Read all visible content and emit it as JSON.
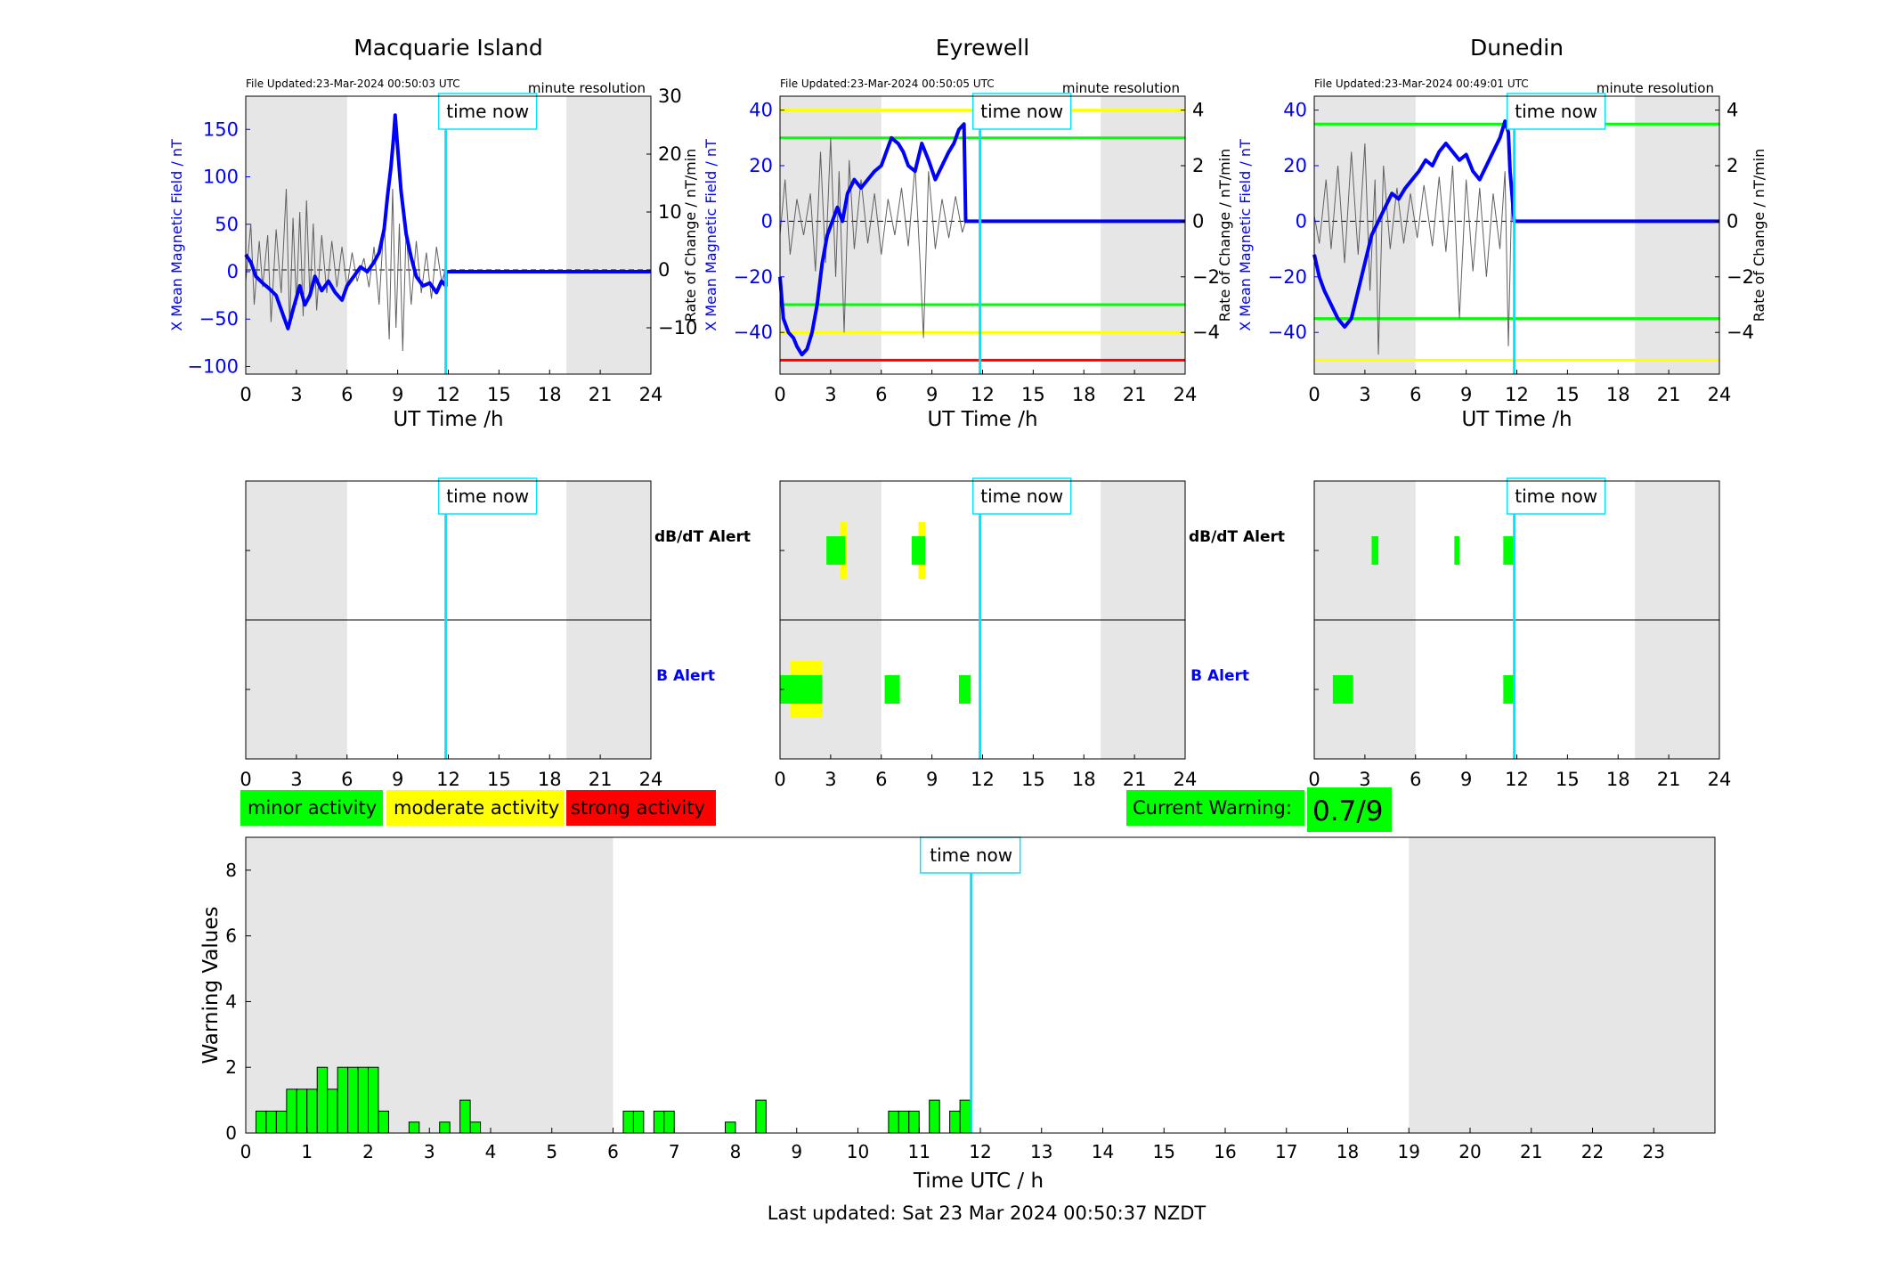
{
  "colors": {
    "x_series": "#0000ff",
    "roc_series": "#606060",
    "time_now": "#00e5ff",
    "night_shade": "#e6e6e6",
    "minor": "#00ff00",
    "moderate": "#ffff00",
    "strong": "#ff0000",
    "b_alert_label": "#0000ff"
  },
  "common": {
    "time_now_label": "time now",
    "time_now_hour": 11.85,
    "resolution_label": "minute resolution",
    "x_axis_label": "UT Time /h",
    "y_left_label": "X Mean Magnetic Field / nT",
    "y_right_label": "Rate of Change / nT/min",
    "hour_ticks": [
      0,
      3,
      6,
      9,
      12,
      15,
      18,
      21,
      24
    ]
  },
  "alerts": {
    "dbdt_label": "dB/dT Alert",
    "b_label": "B Alert"
  },
  "legend": {
    "minor": "minor activity",
    "moderate": "moderate activity",
    "strong": "strong activity"
  },
  "current_warning": {
    "label": "Current Warning:",
    "value": "0.7/9"
  },
  "footer": {
    "last_updated": "Last updated: Sat 23 Mar 2024 00:50:37 NZDT"
  },
  "chart_data": [
    {
      "type": "line",
      "station": "Macquarie Island",
      "file_updated": "File Updated:23-Mar-2024 00:50:03 UTC",
      "xlim": [
        0,
        24
      ],
      "ylim": [
        -108,
        185
      ],
      "y_ticks": [
        -100,
        -50,
        0,
        50,
        100,
        150
      ],
      "y2lim": [
        -18,
        30
      ],
      "y2_ticks": [
        -10,
        0,
        10,
        20,
        30
      ],
      "shade": [
        [
          0,
          6
        ],
        [
          19,
          24
        ]
      ],
      "thresholds": [],
      "x_points": [
        [
          0,
          18
        ],
        [
          0.3,
          10
        ],
        [
          0.6,
          -5
        ],
        [
          1,
          -12
        ],
        [
          1.4,
          -18
        ],
        [
          1.8,
          -25
        ],
        [
          2.2,
          -45
        ],
        [
          2.5,
          -60
        ],
        [
          2.8,
          -40
        ],
        [
          3.2,
          -15
        ],
        [
          3.5,
          -35
        ],
        [
          3.8,
          -25
        ],
        [
          4.1,
          -5
        ],
        [
          4.5,
          -20
        ],
        [
          4.9,
          -10
        ],
        [
          5.3,
          -22
        ],
        [
          5.7,
          -30
        ],
        [
          6.0,
          -15
        ],
        [
          6.4,
          -5
        ],
        [
          6.8,
          5
        ],
        [
          7.2,
          0
        ],
        [
          7.6,
          10
        ],
        [
          7.9,
          20
        ],
        [
          8.2,
          45
        ],
        [
          8.4,
          80
        ],
        [
          8.6,
          110
        ],
        [
          8.75,
          140
        ],
        [
          8.85,
          165
        ],
        [
          9.0,
          130
        ],
        [
          9.2,
          85
        ],
        [
          9.5,
          40
        ],
        [
          9.8,
          15
        ],
        [
          10.1,
          -5
        ],
        [
          10.5,
          -15
        ],
        [
          10.9,
          -12
        ],
        [
          11.3,
          -22
        ],
        [
          11.6,
          -10
        ],
        [
          11.85,
          -15
        ],
        [
          11.85,
          0
        ],
        [
          24,
          0
        ]
      ],
      "roc_points": [
        [
          0,
          -2
        ],
        [
          0.3,
          8
        ],
        [
          0.5,
          -6
        ],
        [
          0.8,
          5
        ],
        [
          1.0,
          -3
        ],
        [
          1.3,
          6
        ],
        [
          1.5,
          -9
        ],
        [
          1.8,
          7
        ],
        [
          2.1,
          -4
        ],
        [
          2.4,
          14
        ],
        [
          2.6,
          -10
        ],
        [
          2.8,
          9
        ],
        [
          3.0,
          -6
        ],
        [
          3.2,
          10
        ],
        [
          3.4,
          -8
        ],
        [
          3.6,
          12
        ],
        [
          3.8,
          -5
        ],
        [
          4.0,
          8
        ],
        [
          4.2,
          -7
        ],
        [
          4.5,
          6
        ],
        [
          4.8,
          -4
        ],
        [
          5.1,
          5
        ],
        [
          5.4,
          -3
        ],
        [
          5.7,
          4
        ],
        [
          6.0,
          -3
        ],
        [
          6.3,
          3
        ],
        [
          6.6,
          -2
        ],
        [
          7.0,
          2
        ],
        [
          7.3,
          -3
        ],
        [
          7.6,
          4
        ],
        [
          7.9,
          -6
        ],
        [
          8.2,
          9
        ],
        [
          8.5,
          -12
        ],
        [
          8.7,
          14
        ],
        [
          8.9,
          -10
        ],
        [
          9.1,
          8
        ],
        [
          9.3,
          -14
        ],
        [
          9.5,
          7
        ],
        [
          9.8,
          -6
        ],
        [
          10.1,
          5
        ],
        [
          10.4,
          -4
        ],
        [
          10.7,
          3
        ],
        [
          11.0,
          -5
        ],
        [
          11.3,
          4
        ],
        [
          11.6,
          -2
        ],
        [
          11.85,
          0
        ]
      ]
    },
    {
      "type": "line",
      "station": "Eyrewell",
      "file_updated": "File Updated:23-Mar-2024 00:50:05 UTC",
      "xlim": [
        0,
        24
      ],
      "ylim": [
        -55,
        45
      ],
      "y_ticks": [
        -40,
        -20,
        0,
        20,
        40
      ],
      "y2lim": [
        -5.5,
        4.5
      ],
      "y2_ticks": [
        -4,
        -2,
        0,
        2,
        4
      ],
      "shade": [
        [
          0,
          6
        ],
        [
          19,
          24
        ]
      ],
      "thresholds": [
        [
          40,
          "moderate"
        ],
        [
          30,
          "minor"
        ],
        [
          -30,
          "minor"
        ],
        [
          -40,
          "moderate"
        ],
        [
          -50,
          "strong"
        ]
      ],
      "x_points": [
        [
          0,
          -20
        ],
        [
          0.2,
          -35
        ],
        [
          0.5,
          -40
        ],
        [
          0.8,
          -42
        ],
        [
          1.0,
          -45
        ],
        [
          1.3,
          -48
        ],
        [
          1.6,
          -46
        ],
        [
          1.9,
          -40
        ],
        [
          2.2,
          -30
        ],
        [
          2.5,
          -15
        ],
        [
          2.8,
          -5
        ],
        [
          3.1,
          0
        ],
        [
          3.4,
          5
        ],
        [
          3.7,
          0
        ],
        [
          4.0,
          10
        ],
        [
          4.4,
          15
        ],
        [
          4.8,
          12
        ],
        [
          5.2,
          15
        ],
        [
          5.6,
          18
        ],
        [
          6.0,
          20
        ],
        [
          6.3,
          25
        ],
        [
          6.6,
          30
        ],
        [
          7.0,
          28
        ],
        [
          7.3,
          25
        ],
        [
          7.6,
          20
        ],
        [
          8.0,
          18
        ],
        [
          8.4,
          28
        ],
        [
          8.8,
          22
        ],
        [
          9.2,
          15
        ],
        [
          9.6,
          20
        ],
        [
          10.0,
          25
        ],
        [
          10.3,
          28
        ],
        [
          10.6,
          33
        ],
        [
          10.9,
          35
        ],
        [
          11.0,
          0
        ],
        [
          24,
          0
        ]
      ],
      "roc_points": [
        [
          0,
          -0.5
        ],
        [
          0.3,
          1.5
        ],
        [
          0.6,
          -1.2
        ],
        [
          1.0,
          0.8
        ],
        [
          1.4,
          -0.5
        ],
        [
          1.8,
          1.0
        ],
        [
          2.1,
          -1.8
        ],
        [
          2.4,
          2.5
        ],
        [
          2.7,
          -1.5
        ],
        [
          3.0,
          3.0
        ],
        [
          3.3,
          -2.0
        ],
        [
          3.5,
          1.8
        ],
        [
          3.8,
          -4.0
        ],
        [
          4.1,
          2.2
        ],
        [
          4.4,
          -1.0
        ],
        [
          4.8,
          1.5
        ],
        [
          5.2,
          -0.8
        ],
        [
          5.6,
          1.0
        ],
        [
          6.0,
          -1.2
        ],
        [
          6.4,
          0.8
        ],
        [
          6.8,
          -0.5
        ],
        [
          7.2,
          1.2
        ],
        [
          7.6,
          -0.9
        ],
        [
          8.0,
          2.0
        ],
        [
          8.3,
          -1.5
        ],
        [
          8.5,
          -4.2
        ],
        [
          8.8,
          1.8
        ],
        [
          9.2,
          -1.0
        ],
        [
          9.6,
          0.8
        ],
        [
          10.0,
          -0.6
        ],
        [
          10.4,
          0.9
        ],
        [
          10.8,
          -0.4
        ],
        [
          11.0,
          0
        ]
      ]
    },
    {
      "type": "line",
      "station": "Dunedin",
      "file_updated": "File Updated:23-Mar-2024 00:49:01 UTC",
      "xlim": [
        0,
        24
      ],
      "ylim": [
        -55,
        45
      ],
      "y_ticks": [
        -40,
        -20,
        0,
        20,
        40
      ],
      "y2lim": [
        -5.5,
        4.5
      ],
      "y2_ticks": [
        -4,
        -2,
        0,
        2,
        4
      ],
      "shade": [
        [
          0,
          6
        ],
        [
          19,
          24
        ]
      ],
      "thresholds": [
        [
          35,
          "minor"
        ],
        [
          -35,
          "minor"
        ],
        [
          -50,
          "moderate"
        ]
      ],
      "x_points": [
        [
          0,
          -12
        ],
        [
          0.3,
          -20
        ],
        [
          0.6,
          -25
        ],
        [
          1.0,
          -30
        ],
        [
          1.4,
          -35
        ],
        [
          1.8,
          -38
        ],
        [
          2.2,
          -35
        ],
        [
          2.6,
          -25
        ],
        [
          3.0,
          -15
        ],
        [
          3.4,
          -5
        ],
        [
          3.8,
          0
        ],
        [
          4.2,
          5
        ],
        [
          4.6,
          10
        ],
        [
          5.0,
          8
        ],
        [
          5.4,
          12
        ],
        [
          5.8,
          15
        ],
        [
          6.2,
          18
        ],
        [
          6.6,
          22
        ],
        [
          7.0,
          20
        ],
        [
          7.4,
          25
        ],
        [
          7.8,
          28
        ],
        [
          8.2,
          25
        ],
        [
          8.6,
          22
        ],
        [
          9.0,
          24
        ],
        [
          9.4,
          18
        ],
        [
          9.8,
          15
        ],
        [
          10.2,
          20
        ],
        [
          10.6,
          25
        ],
        [
          11.0,
          30
        ],
        [
          11.3,
          36
        ],
        [
          11.5,
          32
        ],
        [
          11.6,
          18
        ],
        [
          11.85,
          0
        ],
        [
          24,
          0
        ]
      ],
      "roc_points": [
        [
          0,
          0.2
        ],
        [
          0.3,
          -0.8
        ],
        [
          0.7,
          1.5
        ],
        [
          1.0,
          -1.0
        ],
        [
          1.4,
          2.0
        ],
        [
          1.8,
          -1.5
        ],
        [
          2.2,
          2.5
        ],
        [
          2.6,
          -1.2
        ],
        [
          3.0,
          2.8
        ],
        [
          3.3,
          -2.5
        ],
        [
          3.6,
          1.5
        ],
        [
          3.8,
          -4.8
        ],
        [
          4.1,
          2.0
        ],
        [
          4.5,
          -1.0
        ],
        [
          4.9,
          1.2
        ],
        [
          5.3,
          -0.8
        ],
        [
          5.7,
          1.0
        ],
        [
          6.1,
          -0.6
        ],
        [
          6.5,
          1.3
        ],
        [
          7.0,
          -0.9
        ],
        [
          7.4,
          1.6
        ],
        [
          7.8,
          -1.1
        ],
        [
          8.2,
          2.0
        ],
        [
          8.6,
          -3.5
        ],
        [
          9.0,
          1.5
        ],
        [
          9.4,
          -1.8
        ],
        [
          9.8,
          1.2
        ],
        [
          10.2,
          -2.0
        ],
        [
          10.6,
          1.0
        ],
        [
          11.0,
          -1.0
        ],
        [
          11.3,
          1.8
        ],
        [
          11.5,
          -4.5
        ],
        [
          11.7,
          1.0
        ],
        [
          11.85,
          0
        ]
      ]
    },
    {
      "type": "heatmap",
      "station": "Macquarie Island",
      "xlim": [
        0,
        24
      ],
      "shade": [
        [
          0,
          6
        ],
        [
          19,
          24
        ]
      ],
      "dbdt": [],
      "b": []
    },
    {
      "type": "heatmap",
      "station": "Eyrewell",
      "xlim": [
        0,
        24
      ],
      "shade": [
        [
          0,
          6
        ],
        [
          19,
          24
        ]
      ],
      "dbdt": [
        [
          3.55,
          3.95,
          "moderate"
        ],
        [
          8.2,
          8.6,
          "moderate"
        ],
        [
          2.75,
          3.85,
          "minor"
        ],
        [
          7.8,
          8.6,
          "minor"
        ]
      ],
      "b": [
        [
          0.6,
          2.5,
          "moderate"
        ],
        [
          0,
          2.5,
          "minor"
        ],
        [
          6.2,
          7.1,
          "minor"
        ],
        [
          10.6,
          11.3,
          "minor"
        ]
      ]
    },
    {
      "type": "heatmap",
      "station": "Dunedin",
      "xlim": [
        0,
        24
      ],
      "shade": [
        [
          0,
          6
        ],
        [
          19,
          24
        ]
      ],
      "dbdt": [
        [
          3.4,
          3.8,
          "minor"
        ],
        [
          8.3,
          8.6,
          "minor"
        ],
        [
          11.2,
          11.9,
          "minor"
        ]
      ],
      "b": [
        [
          1.1,
          2.3,
          "minor"
        ],
        [
          11.2,
          11.8,
          "minor"
        ]
      ]
    },
    {
      "type": "bar",
      "xlabel": "Time UTC / h",
      "ylabel": "Warning Values",
      "xlim": [
        0,
        24
      ],
      "ylim": [
        0,
        9
      ],
      "x_ticks": [
        0,
        1,
        2,
        3,
        4,
        5,
        6,
        7,
        8,
        9,
        10,
        11,
        12,
        13,
        14,
        15,
        16,
        17,
        18,
        19,
        20,
        21,
        22,
        23
      ],
      "y_ticks": [
        0,
        2,
        4,
        6,
        8
      ],
      "shade": [
        [
          0,
          6
        ],
        [
          19,
          24
        ]
      ],
      "bin_width": 0.1667,
      "bars": [
        [
          0.167,
          0.667
        ],
        [
          0.333,
          0.667
        ],
        [
          0.5,
          0.667
        ],
        [
          0.667,
          1.333
        ],
        [
          0.833,
          1.333
        ],
        [
          1.0,
          1.333
        ],
        [
          1.167,
          2
        ],
        [
          1.333,
          1.333
        ],
        [
          1.5,
          2
        ],
        [
          1.667,
          2
        ],
        [
          1.833,
          2
        ],
        [
          2.0,
          2
        ],
        [
          2.167,
          0.667
        ],
        [
          2.667,
          0.333
        ],
        [
          3.167,
          0.333
        ],
        [
          3.5,
          1
        ],
        [
          3.667,
          0.333
        ],
        [
          6.167,
          0.667
        ],
        [
          6.333,
          0.667
        ],
        [
          6.667,
          0.667
        ],
        [
          6.833,
          0.667
        ],
        [
          7.833,
          0.333
        ],
        [
          8.333,
          1
        ],
        [
          10.5,
          0.667
        ],
        [
          10.667,
          0.667
        ],
        [
          10.833,
          0.667
        ],
        [
          11.167,
          1
        ],
        [
          11.5,
          0.667
        ],
        [
          11.667,
          1
        ]
      ],
      "time_now_hour": 11.85
    }
  ]
}
